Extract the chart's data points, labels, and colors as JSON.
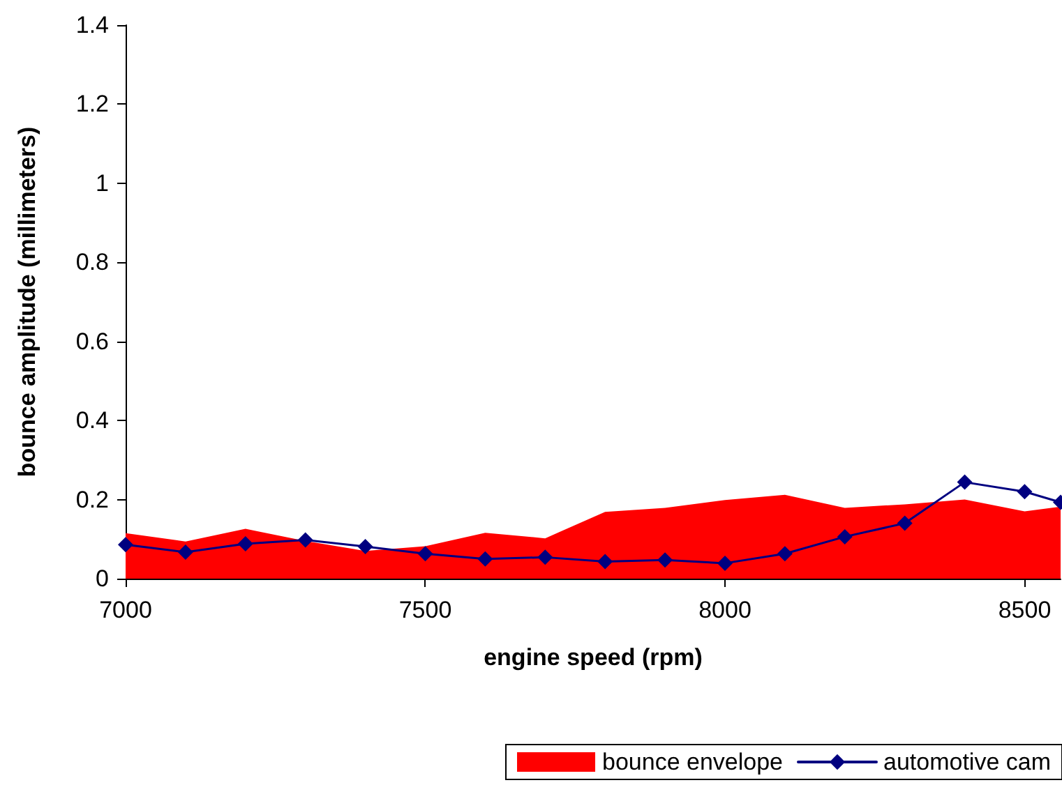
{
  "chart_data": {
    "type": "area",
    "xlabel": "engine speed (rpm)",
    "ylabel": "bounce amplitude (millimeters)",
    "xlim": [
      7000,
      8560
    ],
    "xticks": [
      7000,
      7500,
      8000,
      8500
    ],
    "ylim": [
      0,
      1.4
    ],
    "yticks": [
      0,
      0.2,
      0.4,
      0.6,
      0.8,
      1,
      1.2,
      1.4
    ],
    "grid": false,
    "legend": "bottom right",
    "series": [
      {
        "name": "bounce envelope",
        "color": "#ff0000",
        "x": [
          7000,
          7100,
          7200,
          7300,
          7400,
          7500,
          7600,
          7700,
          7800,
          7900,
          8000,
          8100,
          8200,
          8300,
          8400,
          8500,
          8560
        ],
        "values": [
          0.115,
          0.094,
          0.126,
          0.095,
          0.07,
          0.082,
          0.116,
          0.102,
          0.169,
          0.179,
          0.199,
          0.212,
          0.179,
          0.188,
          0.2,
          0.17,
          0.182
        ]
      },
      {
        "name": "automotive cam",
        "type": "line",
        "color": "#000080",
        "marker": "diamond",
        "line_style": "solid",
        "x": [
          7000,
          7100,
          7200,
          7300,
          7400,
          7500,
          7600,
          7700,
          7800,
          7900,
          8000,
          8100,
          8200,
          8300,
          8400,
          8500,
          8560
        ],
        "values": [
          0.086,
          0.067,
          0.088,
          0.098,
          0.081,
          0.063,
          0.05,
          0.054,
          0.043,
          0.047,
          0.039,
          0.063,
          0.106,
          0.14,
          0.244,
          0.22,
          0.193
        ]
      }
    ]
  }
}
